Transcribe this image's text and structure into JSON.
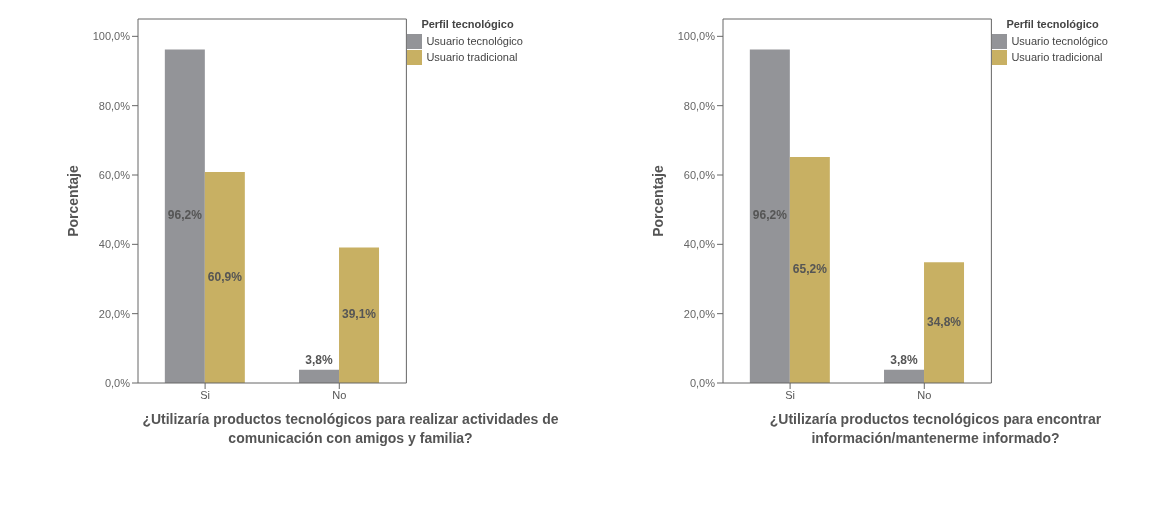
{
  "chart_data": [
    {
      "type": "bar",
      "xlabel": "¿Utilizaría productos tecnológicos para realizar actividades de comunicación con amigos y familia?",
      "ylabel": "Porcentaje",
      "legend_title": "Perfil tecnológico",
      "legend": "top right",
      "grid": false,
      "categories": [
        "Si",
        "No"
      ],
      "ylim": [
        0,
        105
      ],
      "yticks": [
        {
          "value": 0,
          "label": "0,0%"
        },
        {
          "value": 20,
          "label": "20,0%"
        },
        {
          "value": 40,
          "label": "40,0%"
        },
        {
          "value": 60,
          "label": "60,0%"
        },
        {
          "value": 80,
          "label": "80,0%"
        },
        {
          "value": 100,
          "label": "100,0%"
        }
      ],
      "series": [
        {
          "name": "Usuario tecnológico",
          "color": "#939498",
          "values": [
            96.2,
            3.8
          ],
          "value_labels": [
            "96,2%",
            "3,8%"
          ]
        },
        {
          "name": "Usuario tradicional",
          "color": "#c8b063",
          "values": [
            60.9,
            39.1
          ],
          "value_labels": [
            "60,9%",
            "39,1%"
          ]
        }
      ]
    },
    {
      "type": "bar",
      "xlabel": "¿Utilizaría productos tecnológicos para encontrar información/mantenerme informado?",
      "ylabel": "Porcentaje",
      "legend_title": "Perfil tecnológico",
      "legend": "top right",
      "grid": false,
      "categories": [
        "Si",
        "No"
      ],
      "ylim": [
        0,
        105
      ],
      "yticks": [
        {
          "value": 0,
          "label": "0,0%"
        },
        {
          "value": 20,
          "label": "20,0%"
        },
        {
          "value": 40,
          "label": "40,0%"
        },
        {
          "value": 60,
          "label": "60,0%"
        },
        {
          "value": 80,
          "label": "80,0%"
        },
        {
          "value": 100,
          "label": "100,0%"
        }
      ],
      "series": [
        {
          "name": "Usuario tecnológico",
          "color": "#939498",
          "values": [
            96.2,
            3.8
          ],
          "value_labels": [
            "96,2%",
            "3,8%"
          ]
        },
        {
          "name": "Usuario tradicional",
          "color": "#c8b063",
          "values": [
            65.2,
            34.8
          ],
          "value_labels": [
            "65,2%",
            "34,8%"
          ]
        }
      ]
    }
  ]
}
